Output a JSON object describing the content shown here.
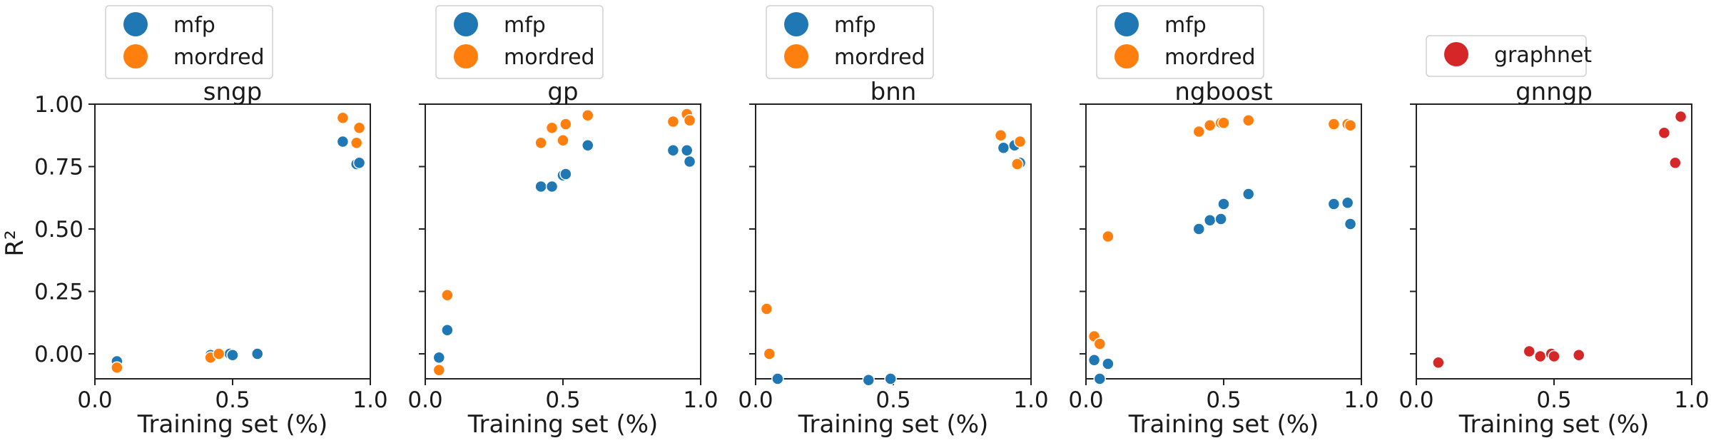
{
  "figure": {
    "ylabel": "R²",
    "xlabel": "Training set (%)"
  },
  "colors": {
    "mfp": "#1f77b4",
    "mordred": "#ff7f0e",
    "graphnet": "#d62728"
  },
  "chart_data": [
    {
      "type": "scatter",
      "title": "sngp",
      "xlabel": "Training set (%)",
      "ylabel": "R²",
      "xlim": [
        0.0,
        1.0
      ],
      "ylim": [
        -0.1,
        1.0
      ],
      "xticks": [
        "0.0",
        "0.5",
        "1.0"
      ],
      "yticks": [
        "0.00",
        "0.25",
        "0.50",
        "0.75",
        "1.00"
      ],
      "legend": {
        "position": "top-left-outside"
      },
      "series": [
        {
          "name": "mfp",
          "color": "#1f77b4",
          "points": [
            [
              0.08,
              -0.03
            ],
            [
              0.42,
              -0.005
            ],
            [
              0.49,
              0.0
            ],
            [
              0.5,
              -0.005
            ],
            [
              0.59,
              0.0
            ],
            [
              0.9,
              0.85
            ],
            [
              0.95,
              0.76
            ],
            [
              0.96,
              0.765
            ]
          ]
        },
        {
          "name": "mordred",
          "color": "#ff7f0e",
          "points": [
            [
              0.08,
              -0.055
            ],
            [
              0.42,
              -0.015
            ],
            [
              0.45,
              0.0
            ],
            [
              0.9,
              0.945
            ],
            [
              0.95,
              0.845
            ],
            [
              0.96,
              0.905
            ]
          ]
        }
      ]
    },
    {
      "type": "scatter",
      "title": "gp",
      "xlabel": "Training set (%)",
      "ylabel": "",
      "xlim": [
        0.0,
        1.0
      ],
      "ylim": [
        -0.1,
        1.0
      ],
      "xticks": [
        "0.0",
        "0.5",
        "1.0"
      ],
      "yticks": [],
      "legend": {
        "position": "top-left-outside"
      },
      "series": [
        {
          "name": "mfp",
          "color": "#1f77b4",
          "points": [
            [
              0.05,
              -0.015
            ],
            [
              0.08,
              0.095
            ],
            [
              0.42,
              0.67
            ],
            [
              0.46,
              0.67
            ],
            [
              0.5,
              0.715
            ],
            [
              0.51,
              0.72
            ],
            [
              0.59,
              0.835
            ],
            [
              0.9,
              0.815
            ],
            [
              0.95,
              0.815
            ],
            [
              0.96,
              0.77
            ]
          ]
        },
        {
          "name": "mordred",
          "color": "#ff7f0e",
          "points": [
            [
              0.05,
              -0.065
            ],
            [
              0.08,
              0.235
            ],
            [
              0.42,
              0.845
            ],
            [
              0.46,
              0.905
            ],
            [
              0.5,
              0.855
            ],
            [
              0.51,
              0.92
            ],
            [
              0.59,
              0.955
            ],
            [
              0.9,
              0.93
            ],
            [
              0.95,
              0.96
            ],
            [
              0.96,
              0.935
            ]
          ]
        }
      ]
    },
    {
      "type": "scatter",
      "title": "bnn",
      "xlabel": "Training set (%)",
      "ylabel": "",
      "xlim": [
        0.0,
        1.0
      ],
      "ylim": [
        -0.1,
        1.0
      ],
      "xticks": [
        "0.0",
        "0.5",
        "1.0"
      ],
      "yticks": [],
      "legend": {
        "position": "top-left-outside"
      },
      "series": [
        {
          "name": "mfp",
          "color": "#1f77b4",
          "points": [
            [
              0.08,
              -0.1
            ],
            [
              0.41,
              -0.105
            ],
            [
              0.49,
              -0.1
            ],
            [
              0.9,
              0.825
            ],
            [
              0.94,
              0.835
            ],
            [
              0.96,
              0.765
            ]
          ]
        },
        {
          "name": "mordred",
          "color": "#ff7f0e",
          "points": [
            [
              0.04,
              0.18
            ],
            [
              0.05,
              0.0
            ],
            [
              0.89,
              0.875
            ],
            [
              0.95,
              0.76
            ],
            [
              0.96,
              0.85
            ]
          ]
        }
      ]
    },
    {
      "type": "scatter",
      "title": "ngboost",
      "xlabel": "Training set (%)",
      "ylabel": "",
      "xlim": [
        0.0,
        1.0
      ],
      "ylim": [
        -0.1,
        1.0
      ],
      "xticks": [
        "0.0",
        "0.5",
        "1.0"
      ],
      "yticks": [],
      "legend": {
        "position": "top-left-outside"
      },
      "series": [
        {
          "name": "mfp",
          "color": "#1f77b4",
          "points": [
            [
              0.03,
              -0.025
            ],
            [
              0.05,
              -0.1
            ],
            [
              0.08,
              -0.04
            ],
            [
              0.41,
              0.5
            ],
            [
              0.45,
              0.535
            ],
            [
              0.49,
              0.54
            ],
            [
              0.5,
              0.6
            ],
            [
              0.59,
              0.64
            ],
            [
              0.9,
              0.6
            ],
            [
              0.95,
              0.605
            ],
            [
              0.96,
              0.52
            ]
          ]
        },
        {
          "name": "mordred",
          "color": "#ff7f0e",
          "points": [
            [
              0.03,
              0.07
            ],
            [
              0.05,
              0.04
            ],
            [
              0.08,
              0.47
            ],
            [
              0.41,
              0.89
            ],
            [
              0.45,
              0.915
            ],
            [
              0.49,
              0.925
            ],
            [
              0.5,
              0.925
            ],
            [
              0.59,
              0.935
            ],
            [
              0.9,
              0.92
            ],
            [
              0.95,
              0.92
            ],
            [
              0.96,
              0.915
            ]
          ]
        }
      ]
    },
    {
      "type": "scatter",
      "title": "gnngp",
      "xlabel": "Training set (%)",
      "ylabel": "",
      "xlim": [
        0.0,
        1.0
      ],
      "ylim": [
        -0.1,
        1.0
      ],
      "xticks": [
        "0.0",
        "0.5",
        "1.0"
      ],
      "yticks": [],
      "legend": {
        "position": "top-center-outside"
      },
      "series": [
        {
          "name": "graphnet",
          "color": "#d62728",
          "points": [
            [
              0.08,
              -0.035
            ],
            [
              0.41,
              0.01
            ],
            [
              0.45,
              -0.01
            ],
            [
              0.49,
              0.0
            ],
            [
              0.5,
              -0.01
            ],
            [
              0.59,
              -0.005
            ],
            [
              0.9,
              0.885
            ],
            [
              0.94,
              0.765
            ],
            [
              0.96,
              0.95
            ]
          ]
        }
      ]
    }
  ]
}
